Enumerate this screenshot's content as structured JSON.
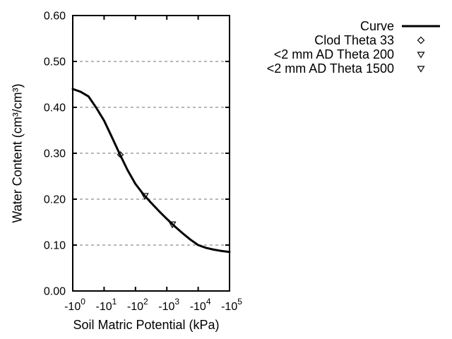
{
  "chart_data": {
    "type": "line",
    "title": "",
    "xlabel": "Soil Matric Potential (kPa)",
    "ylabel": "Water Content (cm³/cm³)",
    "x_scale": "negative-log10",
    "xlim_decades": [
      0,
      5
    ],
    "ylim": [
      0.0,
      0.6
    ],
    "grid": "horizontal-dashed",
    "colors": {
      "background": "#ffffff",
      "axis": "#000000",
      "curve": "#000000",
      "marker": "#000000",
      "grid": "#a0a0a0",
      "text": "#000000"
    },
    "x_ticks": [
      {
        "base": "-10",
        "exp": "0"
      },
      {
        "base": "-10",
        "exp": "1"
      },
      {
        "base": "-10",
        "exp": "2"
      },
      {
        "base": "-10",
        "exp": "3"
      },
      {
        "base": "-10",
        "exp": "4"
      },
      {
        "base": "-10",
        "exp": "5"
      }
    ],
    "y_ticks": [
      "0.00",
      "0.10",
      "0.20",
      "0.30",
      "0.40",
      "0.50",
      "0.60"
    ],
    "legend": {
      "position": "outside-top-right",
      "entries": [
        {
          "label": "Curve",
          "marker": "line"
        },
        {
          "label": "Clod Theta 33",
          "marker": "diamond-open"
        },
        {
          "label": "<2 mm AD Theta 200",
          "marker": "triangle-down-open"
        },
        {
          "label": "<2 mm AD Theta 1500",
          "marker": "triangle-down-open"
        }
      ]
    },
    "series": [
      {
        "name": "Curve",
        "type": "line",
        "points_kpa_theta": [
          [
            -1,
            0.44
          ],
          [
            -1.78,
            0.434
          ],
          [
            -3.16,
            0.424
          ],
          [
            -5.62,
            0.399
          ],
          [
            -10,
            0.371
          ],
          [
            -17.8,
            0.335
          ],
          [
            -31.6,
            0.298
          ],
          [
            -56.2,
            0.263
          ],
          [
            -100,
            0.233
          ],
          [
            -178,
            0.211
          ],
          [
            -316,
            0.192
          ],
          [
            -562,
            0.174
          ],
          [
            -1000,
            0.157
          ],
          [
            -1778,
            0.141
          ],
          [
            -3162,
            0.126
          ],
          [
            -5623,
            0.112
          ],
          [
            -10000,
            0.1
          ],
          [
            -17783,
            0.094
          ],
          [
            -31623,
            0.09
          ],
          [
            -56234,
            0.087
          ],
          [
            -100000,
            0.085
          ]
        ]
      },
      {
        "name": "Clod Theta 33",
        "type": "scatter",
        "marker": "diamond-open",
        "points_kpa_theta": [
          [
            -33,
            0.297
          ]
        ]
      },
      {
        "name": "<2 mm AD Theta 200",
        "type": "scatter",
        "marker": "triangle-down-open",
        "points_kpa_theta": [
          [
            -200,
            0.207
          ]
        ]
      },
      {
        "name": "<2 mm AD Theta 1500",
        "type": "scatter",
        "marker": "triangle-down-open",
        "points_kpa_theta": [
          [
            -1500,
            0.145
          ]
        ]
      }
    ]
  }
}
